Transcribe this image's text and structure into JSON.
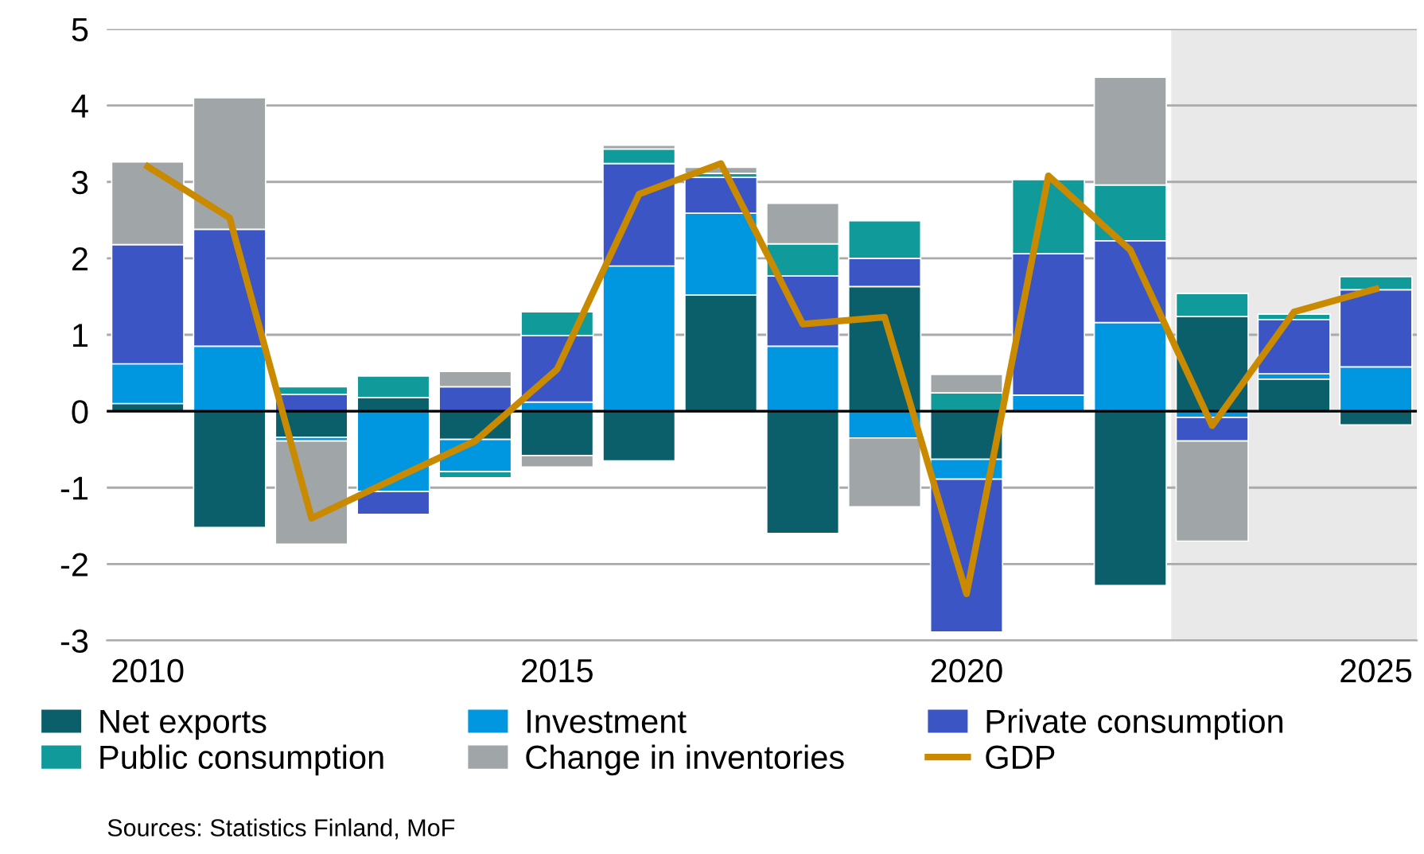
{
  "chart_data": {
    "type": "bar",
    "stacked": true,
    "x": [
      2010,
      2011,
      2012,
      2013,
      2014,
      2015,
      2016,
      2017,
      2018,
      2019,
      2020,
      2021,
      2022,
      2023,
      2024,
      2025
    ],
    "series": [
      {
        "name": "Net exports",
        "color": "#0b5f6b",
        "values": [
          0.1,
          -1.52,
          -0.34,
          0.18,
          -0.37,
          -0.58,
          -0.65,
          1.52,
          -1.6,
          1.63,
          -0.63,
          null,
          -2.28,
          1.24,
          0.42,
          -0.18
        ]
      },
      {
        "name": "Investment",
        "color": "#0096e0",
        "values": [
          0.52,
          0.85,
          -0.05,
          -1.05,
          -0.42,
          0.12,
          1.9,
          1.07,
          0.85,
          -0.35,
          -0.26,
          0.21,
          1.16,
          -0.08,
          0.07,
          0.58
        ]
      },
      {
        "name": "Private consumption",
        "color": "#3c55c4",
        "values": [
          1.56,
          1.53,
          0.22,
          -0.3,
          0.32,
          0.87,
          1.34,
          0.47,
          0.92,
          0.37,
          -2.0,
          1.85,
          1.07,
          -0.31,
          0.71,
          1.01
        ]
      },
      {
        "name": "Public consumption",
        "color": "#119a9a",
        "values": [
          null,
          null,
          0.1,
          0.28,
          -0.08,
          0.31,
          0.19,
          0.05,
          0.42,
          0.49,
          0.24,
          0.97,
          0.73,
          0.3,
          0.07,
          0.17
        ]
      },
      {
        "name": "Change in inventories",
        "color": "#a0a5a8",
        "values": [
          1.08,
          1.72,
          -1.35,
          null,
          0.2,
          -0.15,
          0.05,
          0.08,
          0.53,
          -0.9,
          0.24,
          null,
          1.41,
          -1.31,
          null,
          null
        ]
      },
      {
        "name": "GDP",
        "type": "line",
        "color": "#c98a00",
        "values": [
          3.2,
          2.53,
          -1.4,
          -0.89,
          -0.39,
          0.55,
          2.84,
          3.24,
          1.14,
          1.23,
          -2.39,
          3.08,
          2.11,
          -0.19,
          1.3,
          1.6
        ]
      }
    ],
    "xlim": [
      2009.5,
      2025.5
    ],
    "xticks": [
      2010,
      2015,
      2020,
      2025
    ],
    "ylim": [
      -3,
      5
    ],
    "yticks": [
      -3,
      -2,
      -1,
      0,
      1,
      2,
      3,
      4,
      5
    ],
    "grid": "y",
    "legend": "bottom",
    "line_style": "solid",
    "marker": "none",
    "ref_lines": [
      {
        "axis": "y",
        "value": 0,
        "color": "#000000"
      }
    ],
    "bands": [
      {
        "axis": "x",
        "from": 2022.5,
        "to": 2025.5,
        "color": "#e9e9e9"
      }
    ],
    "annotations": [
      "Sources: Statistics Finland, MoF"
    ]
  }
}
